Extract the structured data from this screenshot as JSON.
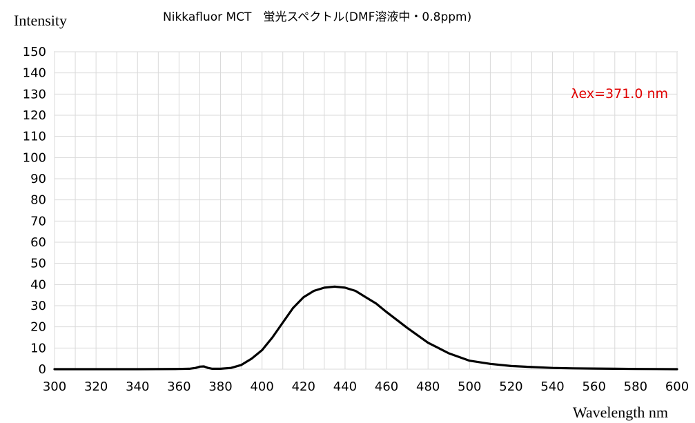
{
  "chart_data": {
    "type": "line",
    "title": "Nikkafluor MCT　蛍光スペクトル(DMF溶液中・0.8ppm)",
    "xlabel": "Wavelength nm",
    "ylabel": "Intensity",
    "xlim": [
      300,
      600
    ],
    "ylim": [
      0,
      150
    ],
    "x_ticks": [
      300,
      320,
      340,
      360,
      380,
      400,
      420,
      440,
      460,
      480,
      500,
      520,
      540,
      560,
      580,
      600
    ],
    "y_ticks": [
      0,
      10,
      20,
      30,
      40,
      50,
      60,
      70,
      80,
      90,
      100,
      110,
      120,
      130,
      140,
      150
    ],
    "x_minor_step": 10,
    "grid": true,
    "annotation": {
      "text": "λex=371.0 nm",
      "color": "#e00000"
    },
    "series": [
      {
        "color": "#000000",
        "x": [
          300,
          320,
          340,
          360,
          365,
          368,
          370,
          372,
          374,
          376,
          380,
          385,
          390,
          395,
          400,
          405,
          410,
          415,
          420,
          425,
          430,
          435,
          440,
          445,
          450,
          455,
          460,
          470,
          480,
          490,
          500,
          510,
          520,
          530,
          540,
          550,
          560,
          570,
          580,
          590,
          600
        ],
        "y": [
          0,
          0,
          0,
          0.1,
          0.2,
          0.6,
          1.2,
          1.3,
          0.6,
          0.2,
          0.2,
          0.6,
          2,
          5,
          9,
          15,
          22,
          29,
          34,
          37,
          38.5,
          39,
          38.5,
          37,
          34,
          31,
          27,
          19.5,
          12.5,
          7.5,
          4,
          2.5,
          1.5,
          1,
          0.6,
          0.4,
          0.3,
          0.2,
          0.1,
          0.05,
          0
        ]
      }
    ]
  }
}
